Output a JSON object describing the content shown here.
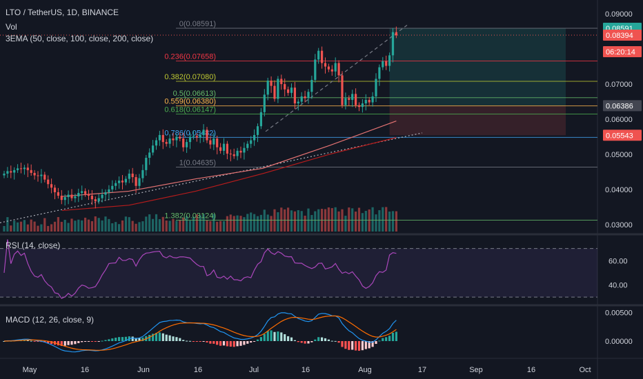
{
  "header": {
    "symbol_line": "LTO / TetherUS, 1D, BINANCE",
    "vol_label": "Vol",
    "ema_label": "3EMA (50, close, 100, close, 200, close)",
    "rsi_label": "RSI (14, close)",
    "macd_label": "MACD (12, 26, close, 9)"
  },
  "price_axis": {
    "ticks": [
      "0.09000",
      "0.08000",
      "0.07000",
      "0.06000",
      "0.05000",
      "0.04000",
      "0.03000"
    ],
    "tags": [
      {
        "text": "0.08591",
        "color": "#26a69a"
      },
      {
        "text": "0.08394",
        "color": "#ef5350"
      },
      {
        "text": "06:20:14",
        "color": "#ef5350"
      },
      {
        "text": "0.06386",
        "color": "#434651"
      },
      {
        "text": "0.05543",
        "color": "#ef5350"
      }
    ]
  },
  "rsi_axis": {
    "ticks": [
      "60.00",
      "40.00"
    ]
  },
  "macd_axis": {
    "ticks": [
      "0.00500",
      "0.00000"
    ]
  },
  "time_axis": {
    "labels": [
      "May",
      "16",
      "Jun",
      "16",
      "Jul",
      "16",
      "Aug",
      "17",
      "Sep",
      "16",
      "Oct"
    ]
  },
  "fib_levels": [
    {
      "label": "0(0.08591)",
      "color": "#787b86"
    },
    {
      "label": "0.236(0.07658)",
      "color": "#f23645"
    },
    {
      "label": "0.382(0.07080)",
      "color": "#c0ca33"
    },
    {
      "label": "0.5(0.06613)",
      "color": "#66bb6a"
    },
    {
      "label": "0.559(0.06380)",
      "color": "#ffb74d"
    },
    {
      "label": "0.618(0.06147)",
      "color": "#4caf50"
    },
    {
      "label": "0.786(0.05482)",
      "color": "#42a5f5"
    },
    {
      "label": "1(0.04635)",
      "color": "#787b86"
    },
    {
      "label": "1.382(0.03124)",
      "color": "#66bb6a"
    }
  ],
  "colors": {
    "up": "#26a69a",
    "down": "#ef5350",
    "background": "#131722",
    "rsi_line": "#ab47bc",
    "macd_line": "#2196f3",
    "signal_line": "#ff6d00"
  },
  "chart_data": {
    "type": "candlestick",
    "symbol": "LTO / TetherUS",
    "interval": "1D",
    "exchange": "BINANCE",
    "ylim": [
      0.028,
      0.092
    ],
    "fib_retracement": [
      {
        "level": 0,
        "price": 0.08591
      },
      {
        "level": 0.236,
        "price": 0.07658
      },
      {
        "level": 0.382,
        "price": 0.0708
      },
      {
        "level": 0.5,
        "price": 0.06613
      },
      {
        "level": 0.559,
        "price": 0.0638
      },
      {
        "level": 0.618,
        "price": 0.06147
      },
      {
        "level": 0.786,
        "price": 0.05482
      },
      {
        "level": 1,
        "price": 0.04635
      },
      {
        "level": 1.382,
        "price": 0.03124
      }
    ],
    "position": {
      "entry": 0.06386,
      "target": 0.08591,
      "stop": 0.05543
    },
    "last_price": 0.08394,
    "close": [
      0.0445,
      0.0452,
      0.0448,
      0.0455,
      0.046,
      0.0458,
      0.0462,
      0.0455,
      0.0447,
      0.044,
      0.0438,
      0.0442,
      0.0428,
      0.0415,
      0.0405,
      0.0392,
      0.0382,
      0.037,
      0.0378,
      0.0385,
      0.0375,
      0.038,
      0.039,
      0.0395,
      0.0387,
      0.0382,
      0.0372,
      0.0366,
      0.0375,
      0.0385,
      0.0392,
      0.04,
      0.041,
      0.0418,
      0.0425,
      0.042,
      0.043,
      0.0445,
      0.0435,
      0.041,
      0.0432,
      0.0455,
      0.049,
      0.0505,
      0.0525,
      0.054,
      0.0555,
      0.0535,
      0.053,
      0.0545,
      0.054,
      0.055,
      0.0545,
      0.052,
      0.0535,
      0.055,
      0.0552,
      0.0548,
      0.0555,
      0.057,
      0.054,
      0.0528,
      0.0545,
      0.052,
      0.051,
      0.053,
      0.0502,
      0.05,
      0.0495,
      0.051,
      0.0505,
      0.0518,
      0.053,
      0.054,
      0.0555,
      0.058,
      0.062,
      0.067,
      0.071,
      0.0695,
      0.0658,
      0.0715,
      0.07,
      0.0685,
      0.0675,
      0.069,
      0.0645,
      0.065,
      0.0665,
      0.066,
      0.0678,
      0.0712,
      0.077,
      0.0795,
      0.076,
      0.075,
      0.0742,
      0.0736,
      0.076,
      0.0725,
      0.064,
      0.066,
      0.0655,
      0.0672,
      0.064,
      0.0635,
      0.0645,
      0.0655,
      0.0648,
      0.0665,
      0.0715,
      0.0748,
      0.0765,
      0.0752,
      0.0782,
      0.0848,
      0.0839
    ],
    "ema_50_values": [
      0.038,
      0.0395,
      0.043,
      0.046,
      0.0525,
      0.0595
    ],
    "ema_100_values": [
      0.034,
      0.0355,
      0.0395,
      0.0445,
      0.05,
      0.0548
    ],
    "rsi_ylim": [
      25,
      80
    ],
    "rsi_levels": [
      70,
      30
    ],
    "macd_ylim": [
      -0.003,
      0.006
    ]
  }
}
